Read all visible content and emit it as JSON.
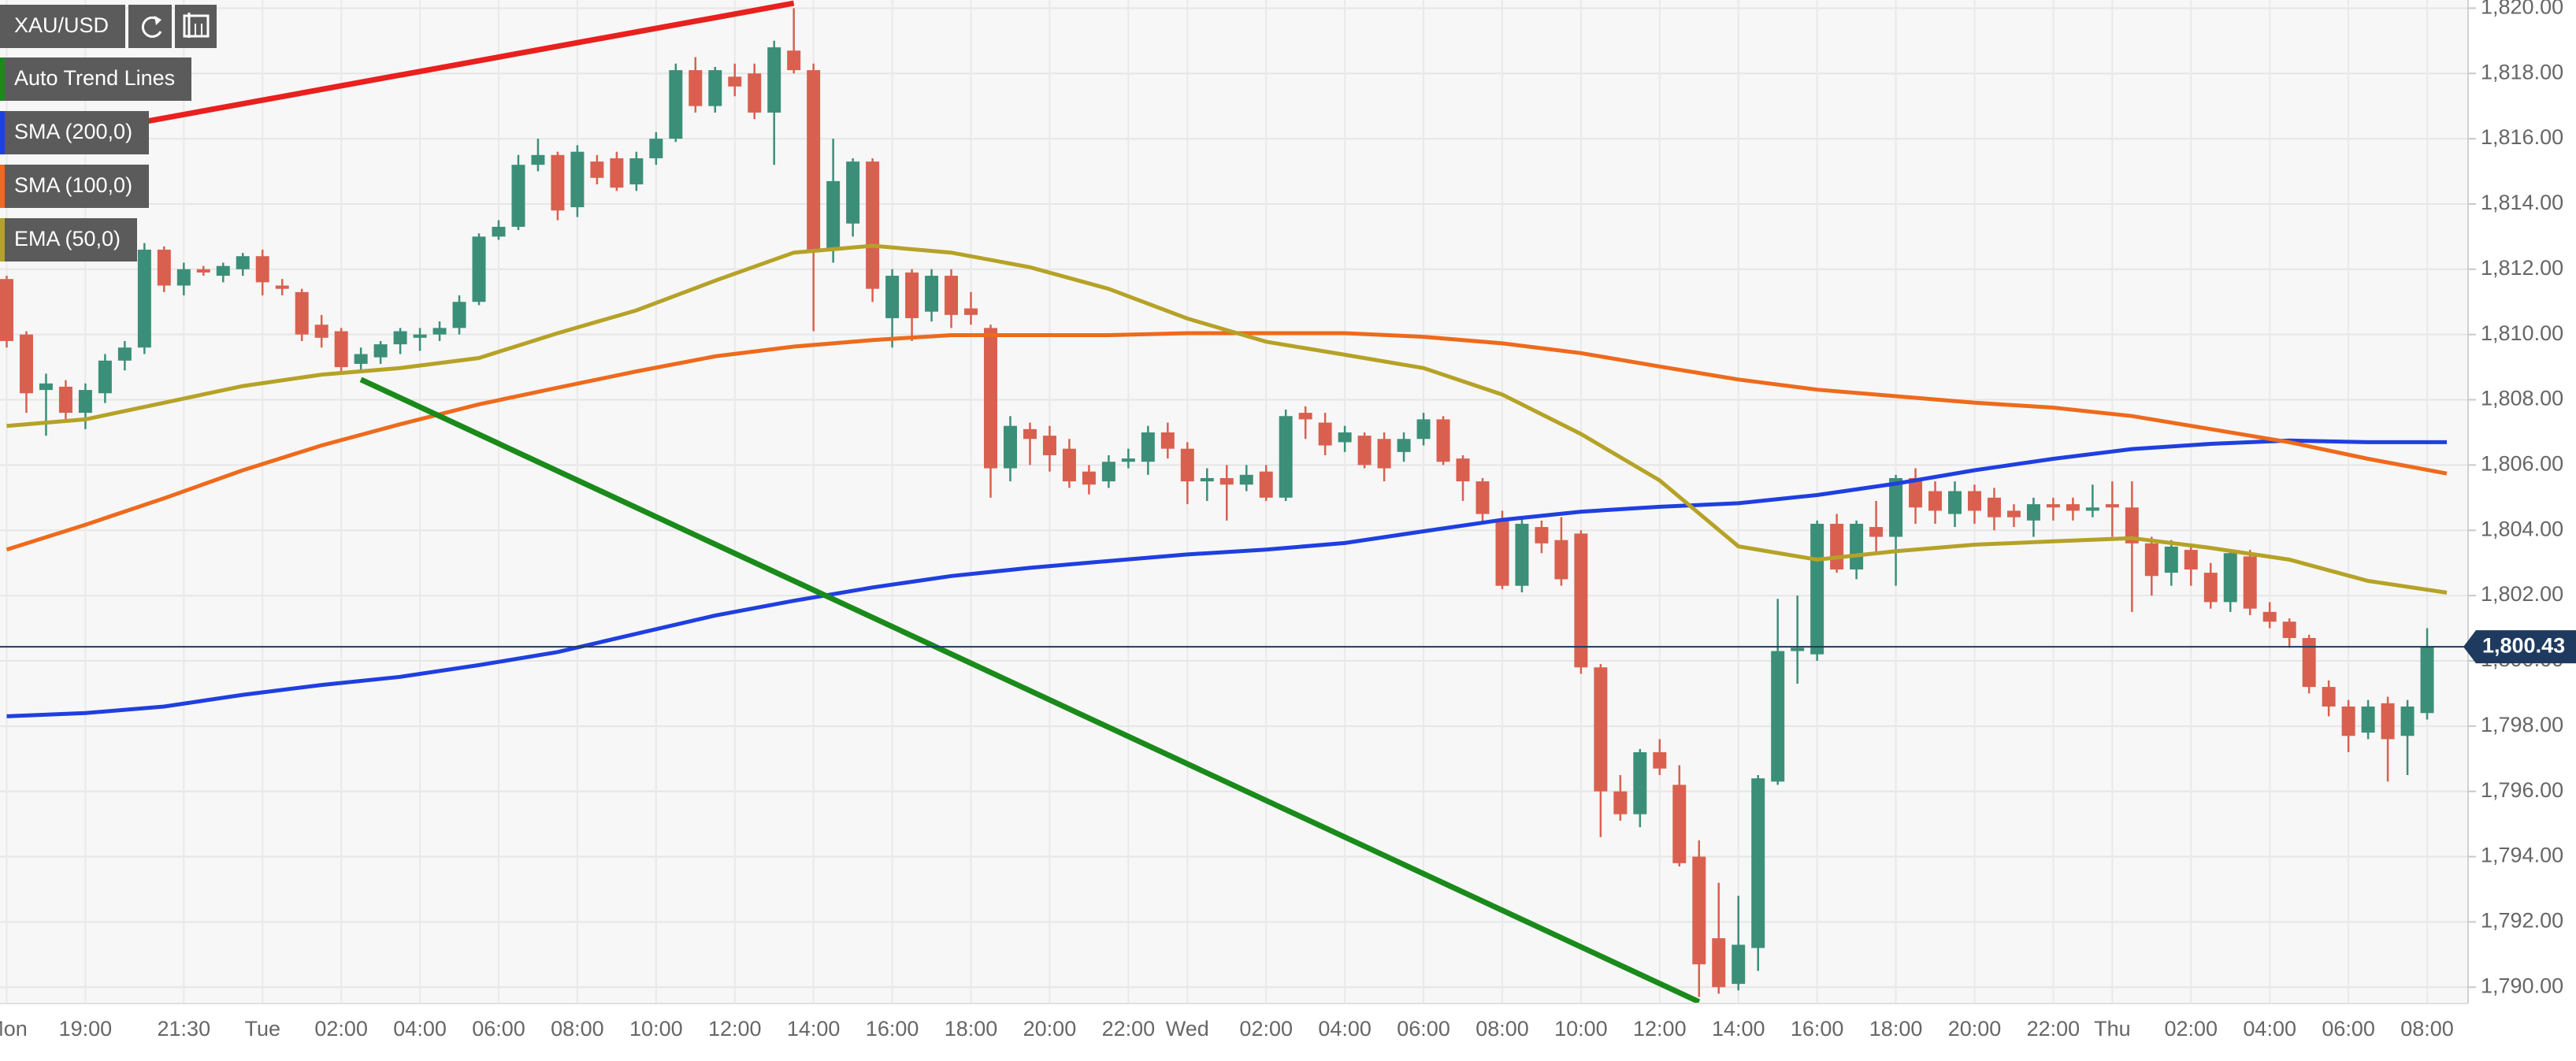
{
  "chart_data": {
    "type": "candlestick",
    "symbol": "XAU/USD",
    "categories": [
      "Mon",
      null,
      null,
      null,
      "19:00",
      null,
      null,
      null,
      null,
      "21:30",
      null,
      null,
      null,
      "Tue",
      null,
      null,
      null,
      "02:00",
      null,
      null,
      null,
      "04:00",
      null,
      null,
      null,
      "06:00",
      null,
      null,
      null,
      "08:00",
      null,
      null,
      null,
      "10:00",
      null,
      null,
      null,
      "12:00",
      null,
      null,
      null,
      "14:00",
      null,
      null,
      null,
      "16:00",
      null,
      null,
      null,
      "18:00",
      null,
      null,
      null,
      "20:00",
      null,
      null,
      null,
      "22:00",
      null,
      null,
      "Wed",
      null,
      null,
      null,
      "02:00",
      null,
      null,
      null,
      "04:00",
      null,
      null,
      null,
      "06:00",
      null,
      null,
      null,
      "08:00",
      null,
      null,
      null,
      "10:00",
      null,
      null,
      null,
      "12:00",
      null,
      null,
      null,
      "14:00",
      null,
      null,
      null,
      "16:00",
      null,
      null,
      null,
      "18:00",
      null,
      null,
      null,
      "20:00",
      null,
      null,
      null,
      "22:00",
      null,
      null,
      "Thu",
      null,
      null,
      null,
      "02:00",
      null,
      null,
      null,
      "04:00",
      null,
      null,
      null,
      "06:00",
      null,
      null,
      null,
      "08:00"
    ],
    "open": [
      1811.7,
      1810,
      1808.3,
      1808.4,
      1807.6,
      1808.2,
      1809.2,
      1809.6,
      1812.6,
      1811.5,
      1812,
      1811.8,
      1812,
      1812.4,
      1811.5,
      1811.3,
      1810.3,
      1810.1,
      1809.1,
      1809.3,
      1809.7,
      1809.9,
      1810,
      1810.2,
      1811,
      1813,
      1813.3,
      1815.2,
      1815.5,
      1813.9,
      1815.3,
      1815.4,
      1814.6,
      1815.4,
      1816,
      1818.1,
      1817,
      1817.9,
      1818,
      1816.8,
      1818.7,
      1818.1,
      1812.6,
      1813.4,
      1815.3,
      1810.5,
      1811.9,
      1810.7,
      1811.8,
      1810.8,
      1810.2,
      1805.9,
      1807.1,
      1806.9,
      1806.5,
      1805.8,
      1805.5,
      1806.1,
      1806.1,
      1807,
      1806.5,
      1805.5,
      1805.6,
      1805.4,
      1805.8,
      1805,
      1807.6,
      1807.3,
      1806.7,
      1806.9,
      1806.8,
      1806.4,
      1806.8,
      1807.4,
      1806.2,
      1805.5,
      1804.3,
      1802.3,
      1804.1,
      1803.7,
      1803.9,
      1799.8,
      1796,
      1795.3,
      1797.2,
      1796.2,
      1794,
      1791.5,
      1790.1,
      1791.2,
      1796.3,
      1800.3,
      1800.2,
      1804.2,
      1802.8,
      1804.1,
      1803.8,
      1805.6,
      1805.2,
      1804.5,
      1805.2,
      1805,
      1804.6,
      1804.3,
      1804.8,
      1804.8,
      1804.6,
      1804.8,
      1804.7,
      1803.6,
      1802.7,
      1803.4,
      1802.7,
      1801.8,
      1803.2,
      1801.5,
      1801.2,
      1800.7,
      1799.2,
      1798.6,
      1797.8,
      1798.7,
      1797.7,
      1798.4
    ],
    "high": [
      1811.8,
      1810.1,
      1808.8,
      1808.6,
      1808.5,
      1809.4,
      1809.8,
      1812.8,
      1812.7,
      1812.2,
      1812.1,
      1812.2,
      1812.5,
      1812.6,
      1811.7,
      1811.4,
      1810.6,
      1810.2,
      1809.6,
      1809.8,
      1810.2,
      1810.2,
      1810.4,
      1811.2,
      1813.1,
      1813.5,
      1815.5,
      1816,
      1815.6,
      1815.8,
      1815.5,
      1815.6,
      1815.6,
      1816.2,
      1818.3,
      1818.5,
      1818.2,
      1818.3,
      1818.3,
      1819,
      1820,
      1818.3,
      1816,
      1815.4,
      1815.4,
      1812,
      1812,
      1812,
      1812,
      1811.3,
      1810.3,
      1807.5,
      1807.3,
      1807.2,
      1806.8,
      1806,
      1806.3,
      1806.5,
      1807.2,
      1807.3,
      1806.7,
      1805.9,
      1806,
      1806,
      1806,
      1807.7,
      1807.8,
      1807.6,
      1807.2,
      1807,
      1807,
      1807,
      1807.6,
      1807.5,
      1806.3,
      1805.6,
      1804.6,
      1804.4,
      1804.3,
      1804.4,
      1804,
      1799.9,
      1796.5,
      1797.3,
      1797.6,
      1796.8,
      1794.5,
      1793.2,
      1792.8,
      1796.5,
      1801.9,
      1802,
      1804.3,
      1804.5,
      1804.3,
      1804.9,
      1805.7,
      1805.9,
      1805.5,
      1805.5,
      1805.4,
      1805.3,
      1804.8,
      1805,
      1805,
      1805,
      1805.4,
      1805.5,
      1805.5,
      1803.8,
      1803.7,
      1803.6,
      1803,
      1803.4,
      1803.4,
      1801.8,
      1801.3,
      1800.8,
      1799.4,
      1798.8,
      1798.8,
      1798.9,
      1798.8,
      1801
    ],
    "low": [
      1809.6,
      1807.6,
      1806.9,
      1807.4,
      1807.1,
      1807.9,
      1808.9,
      1809.4,
      1811.3,
      1811.2,
      1811.8,
      1811.6,
      1811.8,
      1811.2,
      1811.2,
      1809.8,
      1809.6,
      1808.8,
      1808.9,
      1809.1,
      1809.4,
      1809.5,
      1809.8,
      1810,
      1810.9,
      1812.9,
      1813.2,
      1815,
      1813.5,
      1813.6,
      1814.6,
      1814.4,
      1814.4,
      1815.2,
      1815.9,
      1816.8,
      1816.8,
      1817.3,
      1816.6,
      1815.2,
      1818,
      1810.1,
      1812.2,
      1813,
      1811,
      1809.6,
      1809.8,
      1810.4,
      1810.2,
      1810.3,
      1805,
      1805.5,
      1806,
      1805.8,
      1805.3,
      1805.1,
      1805.3,
      1805.9,
      1805.7,
      1806.2,
      1804.8,
      1804.9,
      1804.3,
      1805.2,
      1804.9,
      1804.9,
      1806.8,
      1806.3,
      1806.4,
      1805.9,
      1805.5,
      1806.1,
      1806.6,
      1806,
      1804.9,
      1804.2,
      1802.2,
      1802.1,
      1803.3,
      1802.3,
      1799.6,
      1794.6,
      1795.1,
      1794.9,
      1796.5,
      1793.7,
      1789.7,
      1789.8,
      1789.9,
      1790.5,
      1796.2,
      1799.3,
      1800,
      1802.7,
      1802.5,
      1803.3,
      1802.3,
      1804.2,
      1804.2,
      1804.1,
      1804.2,
      1804,
      1804.1,
      1803.8,
      1804.3,
      1804.3,
      1804.4,
      1803.8,
      1801.5,
      1802,
      1802.3,
      1802.3,
      1801.6,
      1801.5,
      1801.4,
      1801,
      1800.4,
      1799,
      1798.3,
      1797.2,
      1797.6,
      1796.3,
      1796.5,
      1798.2
    ],
    "close": [
      1809.8,
      1808.2,
      1808.5,
      1807.6,
      1808.3,
      1809.2,
      1809.6,
      1812.6,
      1811.5,
      1812,
      1811.9,
      1812.1,
      1812.4,
      1811.6,
      1811.4,
      1810,
      1809.9,
      1809,
      1809.4,
      1809.7,
      1810.1,
      1810,
      1810.2,
      1811,
      1813,
      1813.3,
      1815.2,
      1815.5,
      1813.8,
      1815.6,
      1814.8,
      1814.5,
      1815.4,
      1816,
      1818.1,
      1817,
      1818.1,
      1817.6,
      1816.8,
      1818.8,
      1818.1,
      1812.6,
      1814.7,
      1815.3,
      1811.4,
      1811.8,
      1810.5,
      1811.8,
      1810.6,
      1810.6,
      1805.9,
      1807.2,
      1806.8,
      1806.3,
      1805.5,
      1805.4,
      1806.1,
      1806.2,
      1807,
      1806.5,
      1805.5,
      1805.6,
      1805.4,
      1805.7,
      1805,
      1807.5,
      1807.4,
      1806.6,
      1807,
      1806,
      1805.9,
      1806.8,
      1807.4,
      1806.1,
      1805.5,
      1804.5,
      1802.3,
      1804.2,
      1803.6,
      1802.5,
      1799.8,
      1796,
      1795.3,
      1797.2,
      1796.7,
      1793.8,
      1790.7,
      1790,
      1791.3,
      1796.4,
      1800.3,
      1800.4,
      1804.2,
      1802.8,
      1804.2,
      1803.8,
      1805.6,
      1804.7,
      1804.6,
      1805.2,
      1804.6,
      1804.4,
      1804.4,
      1804.8,
      1804.7,
      1804.6,
      1804.7,
      1804.7,
      1803.6,
      1802.6,
      1803.5,
      1802.8,
      1801.8,
      1803.3,
      1801.6,
      1801.2,
      1800.7,
      1799.2,
      1798.6,
      1797.7,
      1798.6,
      1797.6,
      1798.6,
      1800.43
    ],
    "up_color": "#3b8f78",
    "down_color": "#d9604f",
    "series": [
      {
        "name": "SMA (200,0)",
        "color": "#1f3fe0",
        "x": [
          0,
          4,
          8,
          12,
          16,
          20,
          24,
          28,
          32,
          36,
          40,
          44,
          48,
          52,
          56,
          60,
          64,
          68,
          72,
          76,
          80,
          84,
          88,
          92,
          96,
          100,
          104,
          108,
          112,
          116,
          120,
          124
        ],
        "values": [
          1798.3,
          1798.4,
          1798.6,
          1798.96,
          1799.26,
          1799.51,
          1799.87,
          1800.27,
          1800.83,
          1801.39,
          1801.84,
          1802.25,
          1802.6,
          1802.85,
          1803.06,
          1803.26,
          1803.41,
          1803.61,
          1803.97,
          1804.32,
          1804.57,
          1804.72,
          1804.83,
          1805.08,
          1805.43,
          1805.84,
          1806.19,
          1806.49,
          1806.65,
          1806.75,
          1806.7,
          1806.7
        ]
      },
      {
        "name": "SMA (100,0)",
        "color": "#ee6a1c",
        "x": [
          0,
          4,
          8,
          12,
          16,
          20,
          24,
          28,
          32,
          36,
          40,
          44,
          48,
          52,
          56,
          60,
          64,
          68,
          72,
          76,
          80,
          84,
          88,
          92,
          96,
          100,
          104,
          108,
          112,
          116,
          120,
          124
        ],
        "values": [
          1803.41,
          1804.17,
          1804.98,
          1805.84,
          1806.6,
          1807.25,
          1807.86,
          1808.37,
          1808.87,
          1809.33,
          1809.63,
          1809.83,
          1809.98,
          1809.98,
          1809.98,
          1810.04,
          1810.04,
          1810.04,
          1809.93,
          1809.73,
          1809.43,
          1809.02,
          1808.62,
          1808.31,
          1808.11,
          1807.91,
          1807.76,
          1807.5,
          1807.1,
          1806.7,
          1806.19,
          1805.74
        ]
      },
      {
        "name": "EMA (50,0)",
        "color": "#b5a227",
        "x": [
          0,
          4,
          8,
          12,
          16,
          20,
          24,
          28,
          32,
          36,
          40,
          44,
          48,
          52,
          56,
          60,
          64,
          68,
          72,
          76,
          80,
          84,
          88,
          92,
          96,
          100,
          104,
          108,
          112,
          116,
          120,
          124
        ],
        "values": [
          1807.2,
          1807.4,
          1807.91,
          1808.42,
          1808.77,
          1808.97,
          1809.28,
          1810.04,
          1810.74,
          1811.65,
          1812.51,
          1812.72,
          1812.51,
          1812.06,
          1811.4,
          1810.49,
          1809.78,
          1809.38,
          1808.97,
          1808.16,
          1806.95,
          1805.53,
          1803.51,
          1803.1,
          1803.36,
          1803.56,
          1803.66,
          1803.76,
          1803.46,
          1803.1,
          1802.45,
          1802.09
        ]
      }
    ],
    "trend_lines": {
      "name": "Auto Trend Lines",
      "legend_color": "#1a8a1a",
      "lines": [
        {
          "color": "#e8201e",
          "x": [
            0,
            40
          ],
          "values": [
            1815.75,
            1820.15
          ]
        },
        {
          "color": "#1a8a1a",
          "x": [
            18,
            86
          ],
          "values": [
            1808.62,
            1789.55
          ]
        }
      ]
    },
    "last_price": {
      "value": 1800.43,
      "label": "1,800.43"
    },
    "xlim": [
      -0.34,
      125.08
    ],
    "ylim": [
      1789.5,
      1820.25
    ],
    "yticks": [
      {
        "value": 1790,
        "label": "1,790.00"
      },
      {
        "value": 1792,
        "label": "1,792.00"
      },
      {
        "value": 1794,
        "label": "1,794.00"
      },
      {
        "value": 1796,
        "label": "1,796.00"
      },
      {
        "value": 1798,
        "label": "1,798.00"
      },
      {
        "value": 1800,
        "label": "1,800.00"
      },
      {
        "value": 1802,
        "label": "1,802.00"
      },
      {
        "value": 1804,
        "label": "1,804.00"
      },
      {
        "value": 1806,
        "label": "1,806.00"
      },
      {
        "value": 1808,
        "label": "1,808.00"
      },
      {
        "value": 1810,
        "label": "1,810.00"
      },
      {
        "value": 1812,
        "label": "1,812.00"
      },
      {
        "value": 1814,
        "label": "1,814.00"
      },
      {
        "value": 1816,
        "label": "1,816.00"
      },
      {
        "value": 1818,
        "label": "1,818.00"
      },
      {
        "value": 1820,
        "label": "1,820.00"
      }
    ],
    "grid": true
  }
}
